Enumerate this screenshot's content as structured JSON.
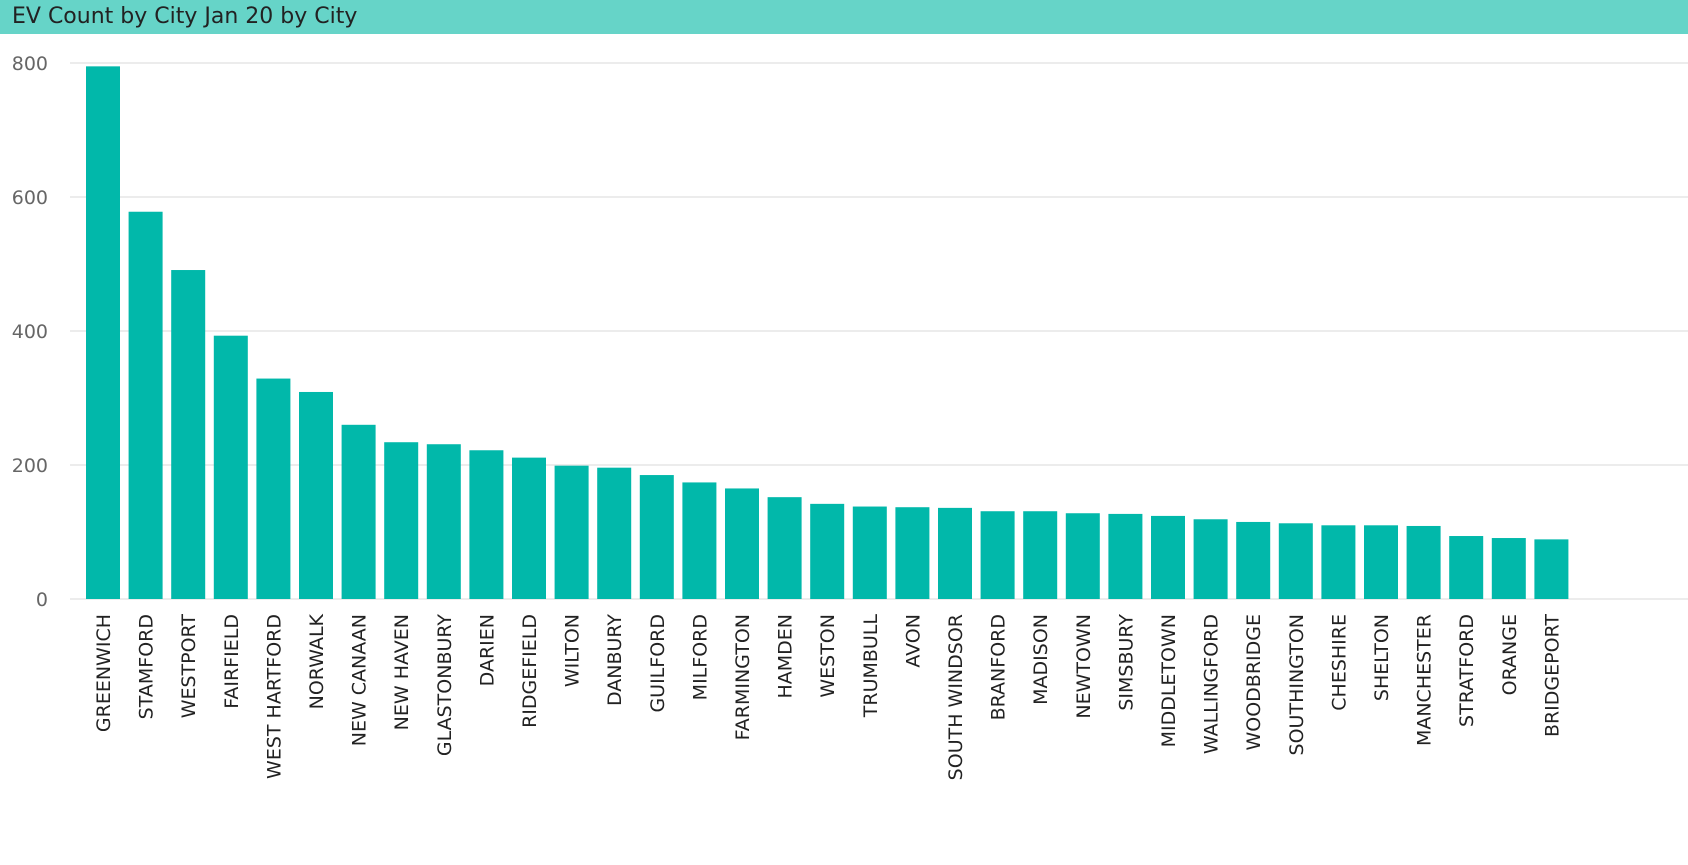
{
  "title": "EV Count by City Jan 20 by City",
  "colors": {
    "title_bar": "#66D4C8",
    "bar": "#01B8AA",
    "grid": "#E6E6E6",
    "axis_text": "#666666",
    "category_text": "#222222"
  },
  "chart_data": {
    "type": "bar",
    "title": "EV Count by City Jan 20 by City",
    "xlabel": "",
    "ylabel": "",
    "ylim": [
      0,
      800
    ],
    "yticks": [
      0,
      200,
      400,
      600,
      800
    ],
    "grid": true,
    "categories": [
      "GREENWICH",
      "STAMFORD",
      "WESTPORT",
      "FAIRFIELD",
      "WEST HARTFORD",
      "NORWALK",
      "NEW CANAAN",
      "NEW HAVEN",
      "GLASTONBURY",
      "DARIEN",
      "RIDGEFIELD",
      "WILTON",
      "DANBURY",
      "GUILFORD",
      "MILFORD",
      "FARMINGTON",
      "HAMDEN",
      "WESTON",
      "TRUMBULL",
      "AVON",
      "SOUTH WINDSOR",
      "BRANFORD",
      "MADISON",
      "NEWTOWN",
      "SIMSBURY",
      "MIDDLETOWN",
      "WALLINGFORD",
      "WOODBRIDGE",
      "SOUTHINGTON",
      "CHESHIRE",
      "SHELTON",
      "MANCHESTER",
      "STRATFORD",
      "ORANGE",
      "BRIDGEPORT"
    ],
    "values": [
      795,
      578,
      491,
      393,
      329,
      309,
      260,
      234,
      231,
      222,
      211,
      199,
      196,
      185,
      174,
      165,
      152,
      142,
      138,
      137,
      136,
      131,
      131,
      128,
      127,
      124,
      119,
      115,
      113,
      110,
      110,
      109,
      94,
      91,
      89
    ]
  }
}
